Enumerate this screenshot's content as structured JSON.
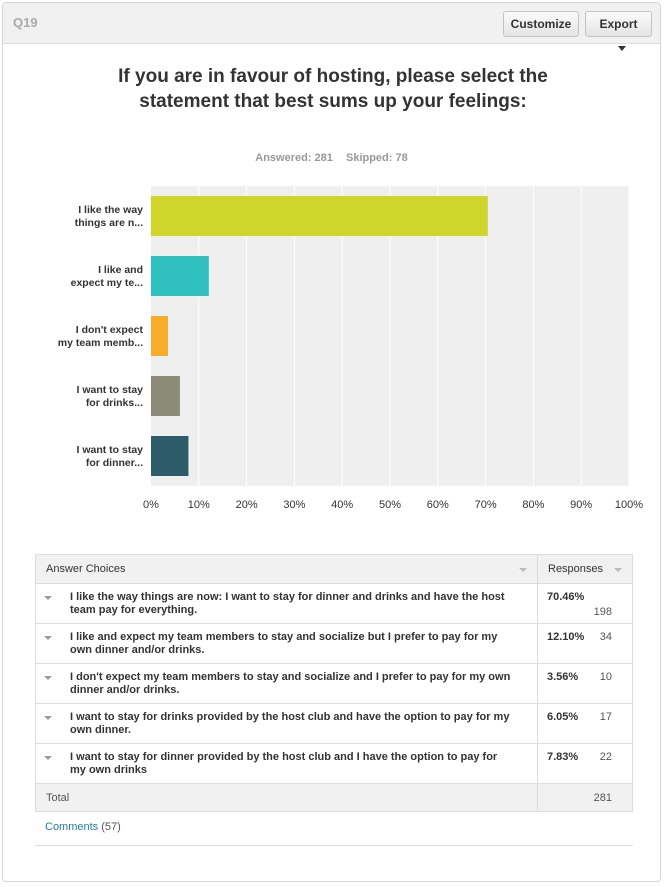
{
  "header": {
    "question_number": "Q19",
    "customize_label": "Customize",
    "export_label": "Export"
  },
  "title": "If you are in favour of hosting, please select the statement that best sums up your feelings:",
  "stats": {
    "answered": "Answered: 281",
    "skipped": "Skipped: 78"
  },
  "colors": {
    "bar1": "#cdd629",
    "bar2": "#31c0c0",
    "bar3": "#f6ad2c",
    "bar4": "#8c8b78",
    "bar5": "#2c5b6a",
    "plot_bg": "#efefef",
    "grid": "#ffffff"
  },
  "chart_data": {
    "type": "bar",
    "orientation": "horizontal",
    "categories": [
      "I like the way things are n...",
      "I like and expect my te...",
      "I don't expect my team memb...",
      "I want to stay for drinks...",
      "I want to stay for dinner..."
    ],
    "category_lines": [
      [
        "I like the way",
        "things are n..."
      ],
      [
        "I like and",
        "expect my te..."
      ],
      [
        "I don't expect",
        "my team memb..."
      ],
      [
        "I want to stay",
        "for drinks..."
      ],
      [
        "I want to stay",
        "for dinner..."
      ]
    ],
    "values": [
      70.46,
      12.1,
      3.56,
      6.05,
      7.83
    ],
    "xlim": [
      0,
      100
    ],
    "x_ticks": [
      "0%",
      "10%",
      "20%",
      "30%",
      "40%",
      "50%",
      "60%",
      "70%",
      "80%",
      "90%",
      "100%"
    ],
    "grid": true
  },
  "table": {
    "col_choices": "Answer Choices",
    "col_responses": "Responses",
    "rows": [
      {
        "choice": "I like the way things are now: I want to stay for dinner and drinks and have the host team pay for everything.",
        "percent": "70.46%",
        "count": "198"
      },
      {
        "choice": "I like and expect my team members to stay and socialize but I prefer to pay for my own dinner and/or drinks.",
        "percent": "12.10%",
        "count": "34"
      },
      {
        "choice": "I don't expect my team members to stay and socialize and I prefer to pay for my own dinner and/or drinks.",
        "percent": "3.56%",
        "count": "10"
      },
      {
        "choice": "I want to stay for drinks provided by the host club and have the option to pay for my own dinner.",
        "percent": "6.05%",
        "count": "17"
      },
      {
        "choice": "I want to stay for dinner provided by the host club and I have the option to pay for my own drinks",
        "percent": "7.83%",
        "count": "22"
      }
    ],
    "total_label": "Total",
    "total_count": "281"
  },
  "comments": {
    "link": "Comments",
    "count": "(57)"
  }
}
